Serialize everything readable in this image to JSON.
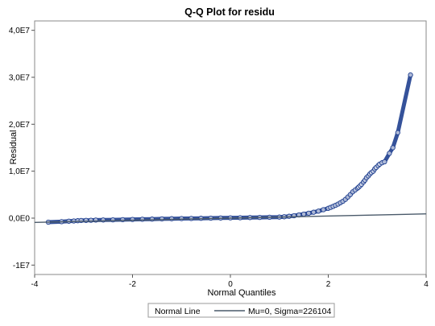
{
  "chart_data": {
    "type": "scatter",
    "title": "Q-Q Plot for residu",
    "xlabel": "Normal Quantiles",
    "ylabel": "Residual",
    "xlim": [
      -4,
      4
    ],
    "ylim": [
      -12000000.0,
      42000000.0
    ],
    "x_ticks": [
      -4,
      -2,
      0,
      2,
      4
    ],
    "x_tick_labels": [
      "-4",
      "-2",
      "0",
      "2",
      "4"
    ],
    "y_ticks": [
      -10000000.0,
      0,
      10000000.0,
      20000000.0,
      30000000.0,
      40000000.0
    ],
    "y_tick_labels": [
      "-1E7",
      "0,0E0",
      "1,0E7",
      "2,0E7",
      "3,0E7",
      "4,0E7"
    ],
    "grid": false,
    "legend_placement": "bottom",
    "marker_color": "#1f3f8f",
    "line_color": "#4a5a6a",
    "series": [
      {
        "kind": "points",
        "x": [
          -3.72,
          -3.45,
          -3.3,
          -3.2,
          -3.12,
          -3.05,
          -2.95,
          -2.85,
          -2.75,
          -2.6,
          -2.4,
          -2.2,
          -2.0,
          -1.8,
          -1.6,
          -1.4,
          -1.2,
          -1.0,
          -0.8,
          -0.6,
          -0.4,
          -0.2,
          0.0,
          0.2,
          0.4,
          0.6,
          0.8,
          1.0,
          1.1,
          1.2,
          1.3,
          1.4,
          1.5,
          1.6,
          1.7,
          1.8,
          1.9,
          2.0,
          2.05,
          2.1,
          2.15,
          2.2,
          2.25,
          2.3,
          2.35,
          2.4,
          2.45,
          2.5,
          2.55,
          2.6,
          2.62,
          2.65,
          2.68,
          2.72,
          2.75,
          2.78,
          2.82,
          2.85,
          2.88,
          2.92,
          2.95,
          2.98,
          3.02,
          3.05,
          3.1,
          3.15,
          3.25,
          3.32,
          3.42,
          3.68
        ],
        "y": [
          -850000.0,
          -750000.0,
          -650000.0,
          -600000.0,
          -550000.0,
          -500000.0,
          -480000.0,
          -450000.0,
          -420000.0,
          -400000.0,
          -360000.0,
          -320000.0,
          -280000.0,
          -240000.0,
          -200000.0,
          -160000.0,
          -120000.0,
          -90000.0,
          -60000.0,
          -30000.0,
          0,
          30000.0,
          60000.0,
          90000.0,
          120000.0,
          150000.0,
          180000.0,
          230000.0,
          300000.0,
          400000.0,
          520000.0,
          680000.0,
          860000.0,
          1050000.0,
          1250000.0,
          1500000.0,
          1800000.0,
          2100000.0,
          2300000.0,
          2500000.0,
          2750000.0,
          3000000.0,
          3300000.0,
          3600000.0,
          4000000.0,
          4500000.0,
          5000000.0,
          5600000.0,
          6000000.0,
          6400000.0,
          6600000.0,
          6900000.0,
          7200000.0,
          7700000.0,
          8100000.0,
          8600000.0,
          9000000.0,
          9400000.0,
          9700000.0,
          10000000.0,
          10500000.0,
          10800000.0,
          11200000.0,
          11500000.0,
          11800000.0,
          12000000.0,
          13800000.0,
          15000000.0,
          18200000.0,
          30500000.0
        ]
      },
      {
        "kind": "line",
        "x": [
          -4,
          4
        ],
        "y": [
          -904416,
          904416
        ]
      }
    ],
    "legend": {
      "title": "Normal Line",
      "entry": "Mu=0, Sigma=226104"
    }
  }
}
